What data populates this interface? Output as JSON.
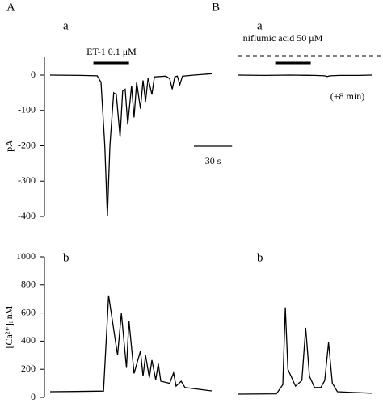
{
  "chart_data": [
    {
      "type": "line",
      "panel": "A",
      "label": "a",
      "ylabel": "pA",
      "annotation": "ET-1 0.1 μM",
      "drug_bar": [
        34,
        62
      ],
      "scale_bar": {
        "value": 30,
        "label": "30 s"
      },
      "color": "#000000",
      "x": [
        0,
        24,
        37,
        40,
        43,
        45,
        47,
        50,
        52,
        55,
        57,
        59,
        61,
        64,
        66,
        68,
        71,
        73,
        75,
        77,
        80,
        82,
        91,
        94,
        96,
        98,
        100,
        102,
        104,
        113,
        127
      ],
      "values": [
        0,
        -1,
        -2,
        -20,
        -200,
        -400,
        -200,
        -50,
        -55,
        -175,
        -45,
        -40,
        -140,
        -30,
        -120,
        -20,
        -95,
        -15,
        -75,
        -8,
        -55,
        -5,
        -3,
        -10,
        -40,
        -5,
        -3,
        -27,
        -3,
        0,
        4
      ],
      "xlim": [
        0,
        127
      ],
      "ylim": [
        -400,
        0
      ],
      "yticks": [
        0,
        -100,
        -200,
        -300,
        -400
      ]
    },
    {
      "type": "line",
      "label": "b",
      "ylabel": "[Ca²⁺]ᵢ nM",
      "color": "#000000",
      "x": [
        0,
        20,
        42,
        46,
        53,
        56,
        60,
        62,
        66,
        71,
        73,
        75,
        78,
        80,
        83,
        85,
        87,
        94,
        97,
        99,
        103,
        106,
        127
      ],
      "values": [
        40,
        42,
        45,
        725,
        300,
        600,
        210,
        545,
        170,
        330,
        150,
        300,
        140,
        265,
        125,
        240,
        115,
        100,
        175,
        80,
        115,
        70,
        46
      ],
      "xlim": [
        0,
        127
      ],
      "ylim": [
        0,
        1000
      ],
      "yticks": [
        0,
        200,
        400,
        600,
        800,
        1000
      ]
    },
    {
      "type": "line",
      "panel": "B",
      "label": "a",
      "annotation": "niflumic acid 50 μM",
      "drug_bar": [
        29,
        57
      ],
      "note": "(+8 min)",
      "color": "#000000",
      "x": [
        0,
        20,
        40,
        60,
        68,
        70,
        72,
        80,
        95,
        105
      ],
      "values": [
        0,
        -1,
        0,
        -1,
        -2,
        -4,
        -2,
        -1,
        -1,
        0
      ],
      "xlim": [
        0,
        105
      ],
      "ylim": [
        -400,
        0
      ]
    },
    {
      "type": "line",
      "label": "b",
      "color": "#000000",
      "x": [
        0,
        30,
        35,
        37,
        39,
        45,
        50,
        53,
        56,
        60,
        65,
        68,
        71,
        74,
        78,
        90,
        105
      ],
      "values": [
        23,
        25,
        90,
        640,
        200,
        80,
        120,
        495,
        150,
        70,
        70,
        120,
        390,
        100,
        40,
        35,
        30
      ],
      "xlim": [
        0,
        105
      ],
      "ylim": [
        0,
        1000
      ]
    }
  ]
}
